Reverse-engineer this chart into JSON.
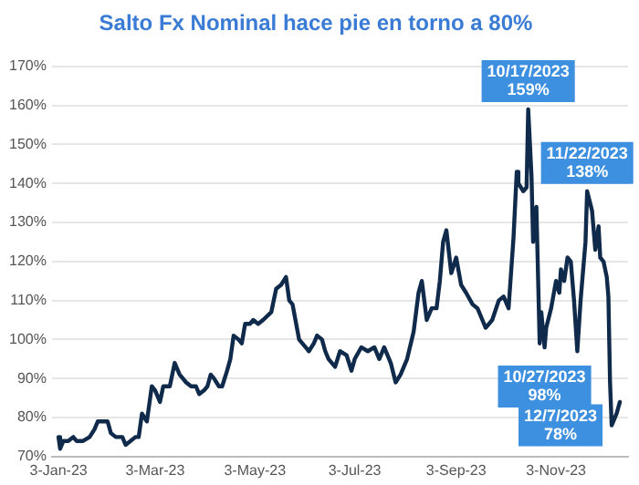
{
  "chart_data": {
    "type": "line",
    "title": "Salto Fx Nominal hace pie en torno a 80%",
    "x": [
      "2023-01-03",
      "2023-01-04",
      "2023-01-06",
      "2023-01-09",
      "2023-01-12",
      "2023-01-14",
      "2023-01-18",
      "2023-01-22",
      "2023-01-25",
      "2023-01-27",
      "2023-01-30",
      "2023-02-02",
      "2023-02-04",
      "2023-02-07",
      "2023-02-11",
      "2023-02-13",
      "2023-02-16",
      "2023-02-19",
      "2023-02-21",
      "2023-02-23",
      "2023-02-26",
      "2023-03-01",
      "2023-03-03",
      "2023-03-06",
      "2023-03-08",
      "2023-03-12",
      "2023-03-15",
      "2023-03-18",
      "2023-03-22",
      "2023-03-25",
      "2023-03-28",
      "2023-03-30",
      "2023-04-02",
      "2023-04-04",
      "2023-04-06",
      "2023-04-08",
      "2023-04-11",
      "2023-04-13",
      "2023-04-16",
      "2023-04-18",
      "2023-04-20",
      "2023-04-23",
      "2023-04-25",
      "2023-04-27",
      "2023-04-30",
      "2023-05-02",
      "2023-05-05",
      "2023-05-08",
      "2023-05-13",
      "2023-05-16",
      "2023-05-19",
      "2023-05-22",
      "2023-05-24",
      "2023-05-26",
      "2023-05-30",
      "2023-06-03",
      "2023-06-05",
      "2023-06-08",
      "2023-06-10",
      "2023-06-13",
      "2023-06-15",
      "2023-06-17",
      "2023-06-21",
      "2023-06-24",
      "2023-06-28",
      "2023-07-01",
      "2023-07-03",
      "2023-07-07",
      "2023-07-11",
      "2023-07-15",
      "2023-07-18",
      "2023-07-21",
      "2023-07-25",
      "2023-07-28",
      "2023-07-31",
      "2023-08-04",
      "2023-08-08",
      "2023-08-11",
      "2023-08-13",
      "2023-08-16",
      "2023-08-19",
      "2023-08-22",
      "2023-08-24",
      "2023-08-26",
      "2023-08-28",
      "2023-08-31",
      "2023-09-03",
      "2023-09-06",
      "2023-09-09",
      "2023-09-13",
      "2023-09-16",
      "2023-09-19",
      "2023-09-21",
      "2023-09-25",
      "2023-09-29",
      "2023-10-02",
      "2023-10-05",
      "2023-10-08",
      "2023-10-10",
      "2023-10-11",
      "2023-10-14",
      "2023-10-16",
      "2023-10-17",
      "2023-10-19",
      "2023-10-20",
      "2023-10-22",
      "2023-10-24",
      "2023-10-25",
      "2023-10-27",
      "2023-10-28",
      "2023-10-31",
      "2023-11-03",
      "2023-11-05",
      "2023-11-06",
      "2023-11-08",
      "2023-11-10",
      "2023-11-12",
      "2023-11-14",
      "2023-11-16",
      "2023-11-18",
      "2023-11-19",
      "2023-11-21",
      "2023-11-22",
      "2023-11-25",
      "2023-11-27",
      "2023-11-29",
      "2023-11-30",
      "2023-12-02",
      "2023-12-04",
      "2023-12-05",
      "2023-12-06",
      "2023-12-07",
      "2023-12-10",
      "2023-12-12"
    ],
    "series": [
      {
        "color": "#0f2a4a",
        "values": [
          75,
          72,
          74,
          74,
          75,
          74,
          74,
          75,
          77,
          79,
          79,
          79,
          76,
          75,
          75,
          73,
          74,
          75,
          75,
          81,
          79,
          88,
          87,
          84,
          88,
          88,
          94,
          91,
          89,
          88,
          88,
          86,
          87,
          88,
          91,
          90,
          88,
          88,
          92,
          95,
          101,
          100,
          99,
          104,
          104,
          105,
          104,
          105,
          107,
          113,
          114,
          116,
          110,
          109,
          100,
          98,
          97,
          99,
          101,
          100,
          97,
          95,
          93,
          97,
          96,
          92,
          95,
          98,
          97,
          98,
          95,
          98,
          94,
          89,
          91,
          95,
          102,
          112,
          115,
          105,
          108,
          108,
          115,
          125,
          128,
          117,
          121,
          114,
          112,
          109,
          108,
          105,
          103,
          105,
          110,
          111,
          108,
          126,
          143,
          140,
          138,
          139,
          159,
          142,
          125,
          134,
          99,
          107,
          98,
          103,
          108,
          115,
          112,
          118,
          115,
          121,
          120,
          110,
          97,
          110,
          110,
          125,
          138,
          133,
          123,
          129,
          121,
          120,
          116,
          111,
          89,
          78,
          81,
          84
        ]
      }
    ],
    "xlim": [
      "2022-12-30",
      "2023-12-17"
    ],
    "xticks": [
      {
        "value": "2023-01-03",
        "label": "3-Jan-23"
      },
      {
        "value": "2023-03-03",
        "label": "3-Mar-23"
      },
      {
        "value": "2023-05-03",
        "label": "3-May-23"
      },
      {
        "value": "2023-07-03",
        "label": "3-Jul-23"
      },
      {
        "value": "2023-09-03",
        "label": "3-Sep-23"
      },
      {
        "value": "2023-11-03",
        "label": "3-Nov-23"
      }
    ],
    "ylim": [
      70,
      170
    ],
    "yticks": [
      {
        "value": 70,
        "label": "70%"
      },
      {
        "value": 80,
        "label": "80%"
      },
      {
        "value": 90,
        "label": "90%"
      },
      {
        "value": 100,
        "label": "100%"
      },
      {
        "value": 110,
        "label": "110%"
      },
      {
        "value": 120,
        "label": "120%"
      },
      {
        "value": 130,
        "label": "130%"
      },
      {
        "value": 140,
        "label": "140%"
      },
      {
        "value": 150,
        "label": "150%"
      },
      {
        "value": 160,
        "label": "160%"
      },
      {
        "value": 170,
        "label": "170%"
      }
    ],
    "grid": "y",
    "legend": false,
    "marker": "none",
    "line_style": "solid",
    "annotations": [
      {
        "text": "10/17/2023\n159%",
        "x": "2023-10-17",
        "y": 159
      },
      {
        "text": "11/22/2023\n138%",
        "x": "2023-11-22",
        "y": 138
      },
      {
        "text": "10/27/2023\n98%",
        "x": "2023-10-27",
        "y": 98
      },
      {
        "text": "12/7/2023\n78%",
        "x": "2023-12-07",
        "y": 78
      }
    ]
  }
}
